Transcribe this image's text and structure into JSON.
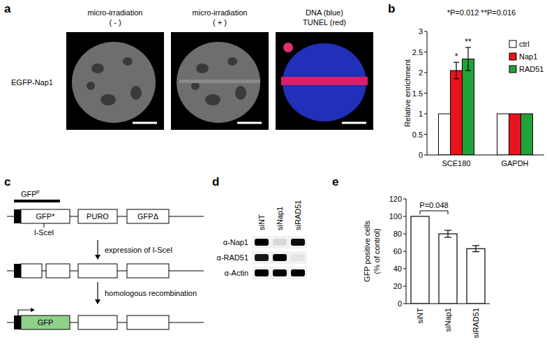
{
  "panel_labels": [
    "a",
    "b",
    "c",
    "d",
    "e"
  ],
  "images": {
    "row_label": "EGFP-Nap1",
    "titles": [
      [
        "micro-irradiation",
        "( - )"
      ],
      [
        "micro-irradiation",
        "( + )"
      ],
      [
        "DNA (blue)",
        "TUNEL (red)"
      ]
    ]
  },
  "diagram": {
    "gfp_tr": "GFP",
    "gfp_tr_sup": "tr",
    "boxes": [
      "GFP*",
      "PURO",
      "GFPΔ"
    ],
    "site": "I-SceI",
    "steps": [
      "expression of I-SceI",
      "homologous recombination"
    ],
    "product": "GFP"
  },
  "blot": {
    "lanes": [
      "siNT",
      "siNap1",
      "siRAD51"
    ],
    "rows": [
      {
        "label": "α-Nap1",
        "intensities": [
          1,
          0.1,
          0.95
        ]
      },
      {
        "label": "α-RAD51",
        "intensities": [
          0.9,
          1,
          0.05
        ]
      },
      {
        "label": "α-Actin",
        "intensities": [
          1,
          1,
          1
        ]
      }
    ]
  },
  "chart_data": [
    {
      "type": "bar",
      "title": "*P=0.012 **P=0.016",
      "y_label": "Relative enrichment",
      "categories": [
        "SCE180",
        "GAPDH"
      ],
      "series": [
        {
          "name": "ctrl",
          "color": "#ffffff",
          "values": [
            1,
            1
          ],
          "errors": [
            0,
            0
          ]
        },
        {
          "name": "Nap1",
          "color": "#e8141c",
          "values": [
            2.05,
            1
          ],
          "errors": [
            0.2,
            0
          ]
        },
        {
          "name": "RAD51",
          "color": "#22a33a",
          "values": [
            2.33,
            1
          ],
          "errors": [
            0.28,
            0
          ]
        }
      ],
      "annotations": [
        {
          "text": "*",
          "series": "Nap1",
          "category": "SCE180"
        },
        {
          "text": "**",
          "series": "RAD51",
          "category": "SCE180"
        }
      ],
      "ylim": [
        0,
        3
      ],
      "yticks": [
        0,
        0.5,
        1,
        1.5,
        2,
        2.5,
        3
      ],
      "legend": "top-right"
    },
    {
      "type": "bar",
      "y_label": [
        "GFP positive cells",
        "(% of control)"
      ],
      "categories": [
        "siNT",
        "siNap1",
        "siRAD51"
      ],
      "values": [
        100,
        80,
        63
      ],
      "errors": [
        0,
        4,
        3.5
      ],
      "color": "#ffffff",
      "annotations": [
        {
          "text": "P=0.048",
          "from": "siNT",
          "to": "siNap1"
        }
      ],
      "ylim": [
        0,
        120
      ],
      "yticks": [
        0,
        20,
        40,
        60,
        80,
        100,
        120
      ]
    }
  ]
}
